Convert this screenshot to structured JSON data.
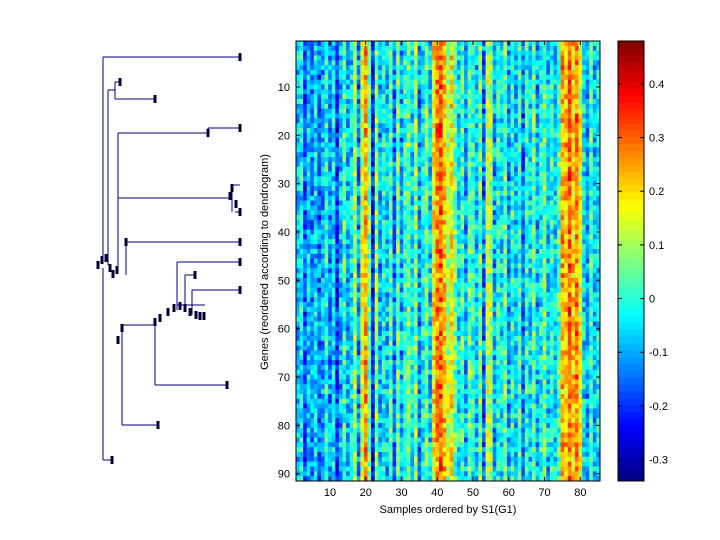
{
  "chart_data": [
    {
      "type": "dendrogram",
      "orientation": "left",
      "line_color": "#000080",
      "leaf_marker_color": "#000033"
    },
    {
      "type": "heatmap",
      "xlabel": "Samples ordered by S1(G1)",
      "ylabel": "Genes (reordered according to dendrogram)",
      "n_rows": 91,
      "n_cols": 85,
      "xlim": [
        0.5,
        85.5
      ],
      "ylim": [
        0.5,
        91.5
      ],
      "x_ticks": [
        10,
        20,
        30,
        40,
        50,
        60,
        70,
        80
      ],
      "y_ticks": [
        10,
        20,
        30,
        40,
        50,
        60,
        70,
        80,
        90
      ],
      "colormap": "jet",
      "clim": [
        -0.34,
        0.48
      ],
      "column_profile": [
        -0.08,
        -0.03,
        -0.18,
        -0.08,
        -0.12,
        -0.05,
        -0.15,
        -0.1,
        0.0,
        -0.12,
        -0.05,
        -0.2,
        -0.08,
        0.02,
        -0.1,
        -0.05,
        0.1,
        -0.12,
        0.15,
        0.25,
        0.05,
        -0.22,
        0.08,
        -0.1,
        -0.02,
        -0.08,
        0.02,
        -0.15,
        0.05,
        -0.1,
        0.0,
        0.05,
        -0.05,
        0.08,
        -0.12,
        -0.03,
        0.05,
        -0.08,
        0.18,
        0.27,
        0.3,
        0.22,
        0.12,
        0.18,
        0.05,
        -0.05,
        0.02,
        -0.1,
        0.05,
        0.0,
        -0.08,
        0.05,
        -0.15,
        0.12,
        0.1,
        -0.1,
        0.0,
        -0.05,
        0.05,
        -0.12,
        0.0,
        -0.08,
        0.02,
        -0.15,
        0.0,
        -0.05,
        0.05,
        -0.1,
        -0.02,
        0.05,
        -0.08,
        0.0,
        -0.05,
        0.02,
        0.25,
        0.22,
        0.3,
        0.2,
        0.28,
        0.15,
        -0.05,
        -0.12,
        0.02,
        -0.08,
        -0.05
      ]
    },
    {
      "type": "colorbar",
      "ticks": [
        0.4,
        0.3,
        0.2,
        0.1,
        0,
        -0.1,
        -0.2,
        -0.3
      ],
      "tick_labels": [
        "0.4",
        "0.3",
        "0.2",
        "0.1",
        "0",
        "-0.1",
        "-0.2",
        "-0.3"
      ],
      "range": [
        -0.34,
        0.48
      ]
    }
  ]
}
